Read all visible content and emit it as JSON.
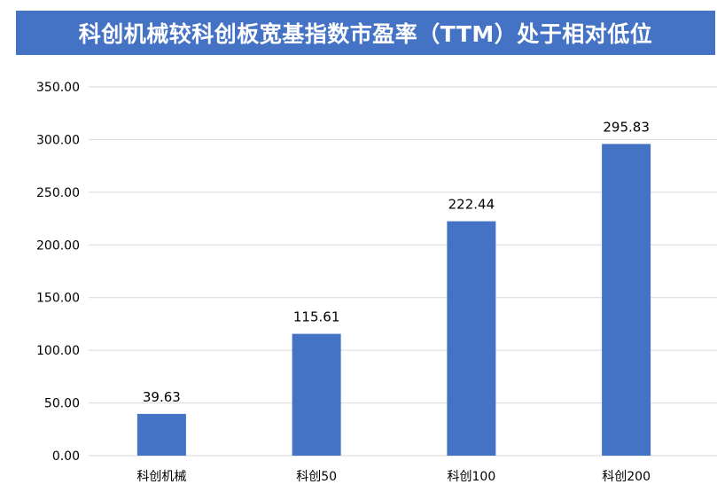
{
  "chart_data": {
    "type": "bar",
    "title": "科创机械较科创板宽基指数市盈率（TTM）处于相对低位",
    "categories": [
      "科创机械",
      "科创50",
      "科创100",
      "科创200"
    ],
    "values": [
      39.63,
      115.61,
      222.44,
      295.83
    ],
    "value_labels": [
      "39.63",
      "115.61",
      "222.44",
      "295.83"
    ],
    "y_ticks": [
      "0.00",
      "50.00",
      "100.00",
      "150.00",
      "200.00",
      "250.00",
      "300.00",
      "350.00"
    ],
    "ylim": [
      0,
      350
    ],
    "y_step": 50,
    "grid": true,
    "legend": "none",
    "colors": {
      "bar": "#4472c4",
      "title_bg": "#4472c4",
      "title_text": "#ffffff",
      "grid": "#d9d9d9",
      "axis_text": "#000000"
    }
  }
}
